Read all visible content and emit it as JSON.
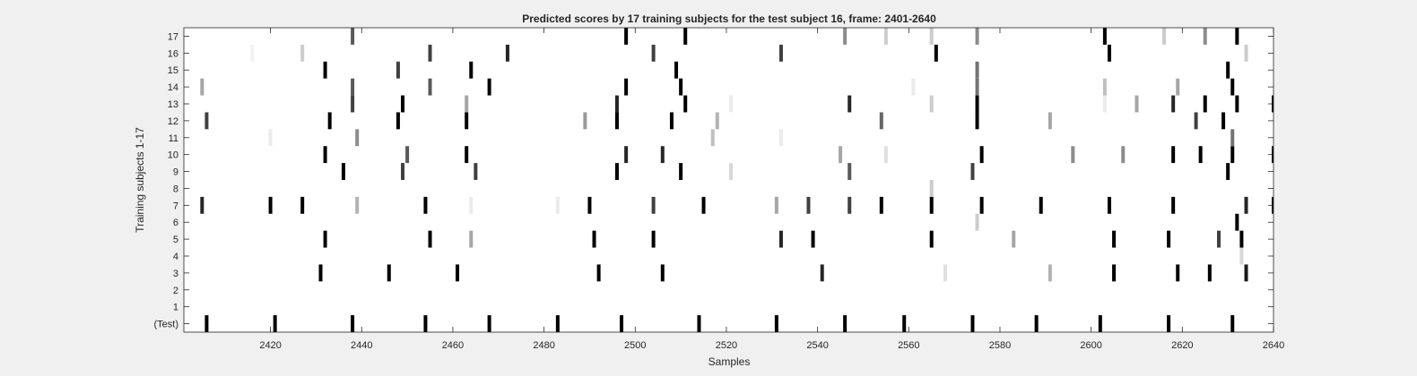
{
  "chart_data": {
    "type": "heatmap",
    "title": "Predicted scores by 17 training subjects for the test subject 16, frame: 2401-2640",
    "xlabel": "Samples",
    "ylabel": "Training subjects 1-17",
    "xlim": [
      2401,
      2640
    ],
    "x_ticks": [
      "2420",
      "2440",
      "2460",
      "2480",
      "2500",
      "2520",
      "2540",
      "2560",
      "2580",
      "2600",
      "2620",
      "2640"
    ],
    "y_tick_labels": [
      "(Test)",
      "1",
      "2",
      "3",
      "4",
      "5",
      "6",
      "7",
      "8",
      "9",
      "10",
      "11",
      "12",
      "13",
      "14",
      "15",
      "16",
      "17"
    ],
    "colormap": "gray (white = 0, black = 1)",
    "grid": false,
    "rows": [
      {
        "label": "(Test)",
        "cells": [
          [
            2406,
            1
          ],
          [
            2421,
            1
          ],
          [
            2438,
            1
          ],
          [
            2454,
            1
          ],
          [
            2468,
            1
          ],
          [
            2483,
            1
          ],
          [
            2497,
            1
          ],
          [
            2514,
            1
          ],
          [
            2531,
            1
          ],
          [
            2546,
            1
          ],
          [
            2559,
            1
          ],
          [
            2574,
            1
          ],
          [
            2588,
            1
          ],
          [
            2602,
            1
          ],
          [
            2617,
            1
          ],
          [
            2631,
            1
          ]
        ]
      },
      {
        "label": "1",
        "cells": []
      },
      {
        "label": "2",
        "cells": []
      },
      {
        "label": "3",
        "cells": [
          [
            2431,
            1
          ],
          [
            2446,
            1
          ],
          [
            2461,
            1
          ],
          [
            2492,
            1
          ],
          [
            2506,
            1
          ],
          [
            2541,
            0.85
          ],
          [
            2568,
            0.12
          ],
          [
            2591,
            0.3
          ],
          [
            2605,
            1
          ],
          [
            2619,
            1
          ],
          [
            2626,
            1
          ],
          [
            2634,
            0.9
          ]
        ]
      },
      {
        "label": "4",
        "cells": [
          [
            2633,
            0.15
          ]
        ]
      },
      {
        "label": "5",
        "cells": [
          [
            2432,
            1
          ],
          [
            2455,
            1
          ],
          [
            2464,
            0.35
          ],
          [
            2491,
            1
          ],
          [
            2504,
            1
          ],
          [
            2532,
            0.85
          ],
          [
            2539,
            1
          ],
          [
            2565,
            1
          ],
          [
            2583,
            0.35
          ],
          [
            2605,
            1
          ],
          [
            2617,
            1
          ],
          [
            2628,
            0.75
          ],
          [
            2633,
            1
          ]
        ]
      },
      {
        "label": "6",
        "cells": [
          [
            2575,
            0.2
          ],
          [
            2632,
            1
          ]
        ]
      },
      {
        "label": "7",
        "cells": [
          [
            2405,
            0.85
          ],
          [
            2420,
            1
          ],
          [
            2427,
            1
          ],
          [
            2439,
            0.3
          ],
          [
            2454,
            1
          ],
          [
            2464,
            0.08
          ],
          [
            2483,
            0.08
          ],
          [
            2490,
            1
          ],
          [
            2504,
            0.75
          ],
          [
            2515,
            1
          ],
          [
            2531,
            0.35
          ],
          [
            2538,
            0.75
          ],
          [
            2547,
            0.75
          ],
          [
            2554,
            1
          ],
          [
            2565,
            1
          ],
          [
            2576,
            1
          ],
          [
            2589,
            1
          ],
          [
            2604,
            1
          ],
          [
            2618,
            1
          ],
          [
            2634,
            0.85
          ],
          [
            2640,
            1
          ]
        ]
      },
      {
        "label": "8",
        "cells": [
          [
            2565,
            0.2
          ]
        ]
      },
      {
        "label": "9",
        "cells": [
          [
            2436,
            1
          ],
          [
            2449,
            0.75
          ],
          [
            2465,
            0.75
          ],
          [
            2496,
            1
          ],
          [
            2510,
            1
          ],
          [
            2521,
            0.15
          ],
          [
            2547,
            0.65
          ],
          [
            2574,
            0.75
          ],
          [
            2630,
            1
          ]
        ]
      },
      {
        "label": "10",
        "cells": [
          [
            2432,
            1
          ],
          [
            2450,
            0.65
          ],
          [
            2463,
            1
          ],
          [
            2498,
            0.85
          ],
          [
            2506,
            0.85
          ],
          [
            2545,
            0.35
          ],
          [
            2555,
            0.12
          ],
          [
            2576,
            1
          ],
          [
            2596,
            0.45
          ],
          [
            2607,
            0.45
          ],
          [
            2618,
            1
          ],
          [
            2624,
            1
          ],
          [
            2631,
            1
          ],
          [
            2640,
            1
          ]
        ]
      },
      {
        "label": "11",
        "cells": [
          [
            2420,
            0.08
          ],
          [
            2439,
            0.45
          ],
          [
            2517,
            0.25
          ],
          [
            2532,
            0.08
          ],
          [
            2631,
            0.55
          ]
        ]
      },
      {
        "label": "12",
        "cells": [
          [
            2406,
            0.75
          ],
          [
            2433,
            1
          ],
          [
            2448,
            1
          ],
          [
            2463,
            1
          ],
          [
            2489,
            0.4
          ],
          [
            2496,
            1
          ],
          [
            2508,
            1
          ],
          [
            2518,
            0.3
          ],
          [
            2554,
            0.6
          ],
          [
            2575,
            1
          ],
          [
            2591,
            0.35
          ],
          [
            2623,
            0.75
          ],
          [
            2629,
            1
          ]
        ]
      },
      {
        "label": "13",
        "cells": [
          [
            2438,
            0.75
          ],
          [
            2449,
            1
          ],
          [
            2463,
            0.35
          ],
          [
            2496,
            0.85
          ],
          [
            2511,
            1
          ],
          [
            2521,
            0.08
          ],
          [
            2547,
            0.85
          ],
          [
            2565,
            0.2
          ],
          [
            2575,
            1
          ],
          [
            2603,
            0.08
          ],
          [
            2610,
            0.35
          ],
          [
            2618,
            0.85
          ],
          [
            2625,
            1
          ],
          [
            2632,
            1
          ],
          [
            2640,
            1
          ]
        ]
      },
      {
        "label": "14",
        "cells": [
          [
            2405,
            0.35
          ],
          [
            2438,
            0.65
          ],
          [
            2455,
            0.65
          ],
          [
            2468,
            1
          ],
          [
            2498,
            1
          ],
          [
            2510,
            1
          ],
          [
            2561,
            0.08
          ],
          [
            2575,
            0.55
          ],
          [
            2603,
            0.25
          ],
          [
            2619,
            0.35
          ],
          [
            2631,
            1
          ]
        ]
      },
      {
        "label": "15",
        "cells": [
          [
            2432,
            1
          ],
          [
            2448,
            0.75
          ],
          [
            2464,
            1
          ],
          [
            2509,
            1
          ],
          [
            2575,
            0.55
          ],
          [
            2630,
            1
          ]
        ]
      },
      {
        "label": "16",
        "cells": [
          [
            2416,
            0.05
          ],
          [
            2427,
            0.2
          ],
          [
            2455,
            0.75
          ],
          [
            2472,
            0.85
          ],
          [
            2504,
            0.75
          ],
          [
            2532,
            0.75
          ],
          [
            2566,
            1
          ],
          [
            2604,
            1
          ],
          [
            2634,
            0.2
          ]
        ]
      },
      {
        "label": "17",
        "cells": [
          [
            2438,
            0.65
          ],
          [
            2498,
            1
          ],
          [
            2511,
            1
          ],
          [
            2546,
            0.45
          ],
          [
            2555,
            0.2
          ],
          [
            2565,
            0.2
          ],
          [
            2575,
            0.45
          ],
          [
            2603,
            1
          ],
          [
            2616,
            0.2
          ],
          [
            2625,
            0.45
          ],
          [
            2632,
            1
          ]
        ]
      }
    ]
  }
}
